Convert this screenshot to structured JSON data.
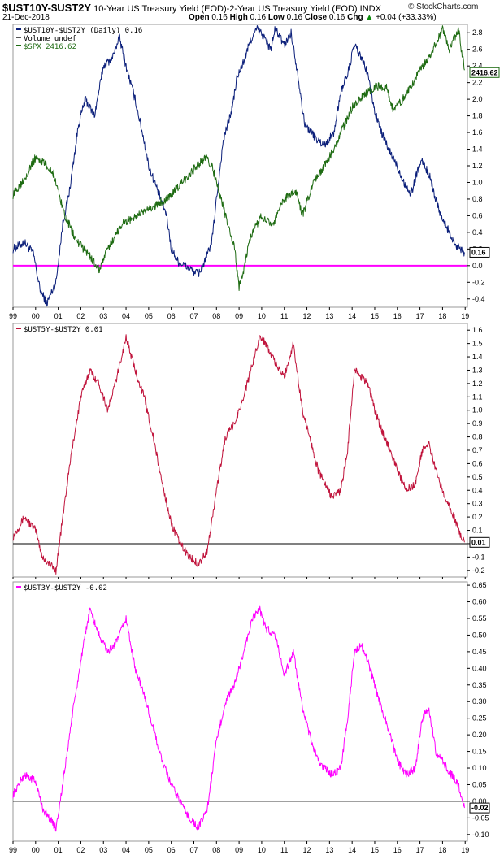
{
  "header": {
    "symbol": "$UST10Y-$UST2Y",
    "description": "10-Year US Treasury Yield (EOD)-2-Year US Treasury Yield (EOD)",
    "exchange": "INDX",
    "date": "21-Dec-2018",
    "open_label": "Open",
    "open": "0.16",
    "high_label": "High",
    "high": "0.16",
    "low_label": "Low",
    "low": "0.16",
    "close_label": "Close",
    "close": "0.16",
    "chg_label": "Chg",
    "chg": "+0.04 (+33.33%)",
    "chg_icon": "up-triangle-icon",
    "brand": "© StockCharts.com"
  },
  "chart_data": [
    {
      "type": "line",
      "panel": "main",
      "legend": [
        "$UST10Y-$UST2Y (Daily) 0.16",
        "Volume undef",
        "$SPX 2416.62"
      ],
      "x_tick_labels": [
        "99",
        "00",
        "01",
        "02",
        "03",
        "04",
        "05",
        "06",
        "07",
        "08",
        "09",
        "10",
        "11",
        "12",
        "13",
        "14",
        "15",
        "16",
        "17",
        "18",
        "19"
      ],
      "y_tick_labels": [
        "2.8",
        "2.6",
        "2.4",
        "2.2",
        "2.0",
        "1.8",
        "1.6",
        "1.4",
        "1.2",
        "1.0",
        "0.8",
        "0.6",
        "0.4",
        "0.2",
        "0.0",
        "-0.2",
        "-0.4"
      ],
      "ylim": [
        -0.5,
        2.9
      ],
      "last_value_label": "0.16",
      "overlay_last_label": "2416.62",
      "reference_line": 0,
      "colors": {
        "series": "#0b1f7a",
        "overlay": "#1e6b12",
        "reference": "#ff00ff"
      },
      "series": [
        {
          "name": "$UST10Y-$UST2Y",
          "x": [
            1999.0,
            1999.5,
            1999.9,
            2000.2,
            2000.5,
            2000.9,
            2001.2,
            2001.5,
            2001.9,
            2002.2,
            2002.6,
            2003.0,
            2003.4,
            2003.7,
            2004.0,
            2004.4,
            2004.8,
            2005.0,
            2005.4,
            2005.8,
            2006.0,
            2006.3,
            2006.6,
            2006.9,
            2007.2,
            2007.5,
            2007.8,
            2008.0,
            2008.3,
            2008.7,
            2008.9,
            2009.2,
            2009.5,
            2009.8,
            2010.1,
            2010.4,
            2010.6,
            2011.0,
            2011.3,
            2011.6,
            2011.9,
            2012.2,
            2012.5,
            2012.8,
            2013.2,
            2013.5,
            2013.8,
            2014.1,
            2014.4,
            2014.7,
            2015.0,
            2015.3,
            2015.6,
            2015.9,
            2016.3,
            2016.6,
            2016.9,
            2017.1,
            2017.4,
            2017.7,
            2018.0,
            2018.3,
            2018.6,
            2018.97
          ],
          "values": [
            0.2,
            0.28,
            0.15,
            -0.3,
            -0.45,
            -0.2,
            0.5,
            0.9,
            1.7,
            2.0,
            1.8,
            2.4,
            2.5,
            2.75,
            2.4,
            2.0,
            1.5,
            1.2,
            0.9,
            0.6,
            0.2,
            0.05,
            0.0,
            -0.05,
            -0.1,
            0.05,
            0.3,
            0.8,
            1.5,
            1.9,
            2.25,
            2.45,
            2.7,
            2.85,
            2.75,
            2.6,
            2.85,
            2.65,
            2.8,
            2.3,
            1.7,
            1.6,
            1.5,
            1.45,
            1.6,
            2.1,
            2.3,
            2.65,
            2.5,
            2.3,
            1.85,
            1.6,
            1.4,
            1.25,
            1.0,
            0.85,
            1.15,
            1.25,
            1.1,
            0.8,
            0.55,
            0.4,
            0.25,
            0.16
          ]
        },
        {
          "name": "$SPX",
          "x": [
            1999.0,
            1999.5,
            2000.0,
            2000.3,
            2000.8,
            2001.3,
            2001.8,
            2002.3,
            2002.8,
            2003.2,
            2003.8,
            2004.5,
            2005.2,
            2006.0,
            2006.8,
            2007.5,
            2007.8,
            2008.3,
            2008.8,
            2009.0,
            2009.2,
            2009.5,
            2010.0,
            2010.5,
            2011.0,
            2011.5,
            2011.8,
            2012.3,
            2013.0,
            2013.5,
            2014.0,
            2014.5,
            2015.0,
            2015.5,
            2015.8,
            2016.1,
            2016.5,
            2017.0,
            2017.5,
            2018.0,
            2018.3,
            2018.7,
            2018.97
          ],
          "values": [
            0.85,
            1.05,
            1.3,
            1.25,
            1.1,
            0.6,
            0.3,
            0.15,
            -0.05,
            0.2,
            0.5,
            0.6,
            0.7,
            0.85,
            1.1,
            1.3,
            1.2,
            0.7,
            0.2,
            -0.25,
            -0.05,
            0.35,
            0.6,
            0.5,
            0.8,
            0.9,
            0.6,
            1.0,
            1.3,
            1.6,
            1.9,
            2.05,
            2.15,
            2.15,
            1.9,
            1.95,
            2.1,
            2.35,
            2.55,
            2.85,
            2.6,
            2.85,
            2.35
          ]
        }
      ]
    },
    {
      "type": "line",
      "panel": "middle",
      "legend": "$UST5Y-$UST2Y 0.01",
      "x_tick_labels": [],
      "y_tick_labels": [
        "1.6",
        "1.5",
        "1.4",
        "1.3",
        "1.2",
        "1.1",
        "1.0",
        "0.9",
        "0.8",
        "0.7",
        "0.6",
        "0.5",
        "0.4",
        "0.3",
        "0.2",
        "0.1",
        "0.0",
        "-0.1",
        "-0.2"
      ],
      "ylim": [
        -0.25,
        1.65
      ],
      "last_value_label": "0.01",
      "reference_line": 0,
      "colors": {
        "series": "#c0143c",
        "reference": "#000000"
      },
      "series": [
        {
          "name": "$UST5Y-$UST2Y",
          "x": [
            1999.0,
            1999.5,
            2000.0,
            2000.3,
            2000.6,
            2000.9,
            2001.2,
            2001.6,
            2002.0,
            2002.4,
            2002.8,
            2003.2,
            2003.6,
            2004.0,
            2004.4,
            2004.8,
            2005.2,
            2005.6,
            2006.0,
            2006.4,
            2006.8,
            2007.2,
            2007.6,
            2008.0,
            2008.4,
            2008.8,
            2009.2,
            2009.6,
            2009.9,
            2010.2,
            2010.6,
            2011.0,
            2011.4,
            2011.8,
            2012.2,
            2012.5,
            2012.8,
            2013.1,
            2013.5,
            2013.8,
            2014.1,
            2014.4,
            2014.7,
            2015.0,
            2015.3,
            2015.7,
            2016.0,
            2016.4,
            2016.8,
            2017.1,
            2017.4,
            2017.7,
            2018.0,
            2018.4,
            2018.7,
            2018.97
          ],
          "values": [
            0.05,
            0.2,
            0.1,
            -0.1,
            -0.15,
            -0.2,
            0.2,
            0.7,
            1.1,
            1.3,
            1.2,
            1.0,
            1.25,
            1.55,
            1.3,
            1.1,
            0.8,
            0.45,
            0.15,
            0.0,
            -0.1,
            -0.15,
            -0.05,
            0.4,
            0.8,
            0.9,
            1.1,
            1.35,
            1.55,
            1.5,
            1.35,
            1.25,
            1.5,
            1.0,
            0.75,
            0.55,
            0.45,
            0.35,
            0.4,
            0.7,
            1.3,
            1.25,
            1.2,
            1.0,
            0.85,
            0.7,
            0.55,
            0.4,
            0.45,
            0.7,
            0.75,
            0.55,
            0.4,
            0.25,
            0.1,
            0.01
          ]
        }
      ]
    },
    {
      "type": "line",
      "panel": "bottom",
      "legend": "$UST3Y-$UST2Y -0.02",
      "x_tick_labels": [
        "99",
        "00",
        "01",
        "02",
        "03",
        "04",
        "05",
        "06",
        "07",
        "08",
        "09",
        "10",
        "11",
        "12",
        "13",
        "14",
        "15",
        "16",
        "17",
        "18",
        "19"
      ],
      "y_tick_labels": [
        "0.65",
        "0.60",
        "0.55",
        "0.50",
        "0.45",
        "0.40",
        "0.35",
        "0.30",
        "0.25",
        "0.20",
        "0.15",
        "0.10",
        "0.05",
        "0.00",
        "-0.05",
        "-0.10"
      ],
      "ylim": [
        -0.12,
        0.66
      ],
      "last_value_label": "-0.02",
      "reference_line": 0,
      "colors": {
        "series": "#ff00ff",
        "reference": "#000000"
      },
      "series": [
        {
          "name": "$UST3Y-$UST2Y",
          "x": [
            1999.0,
            1999.5,
            2000.0,
            2000.3,
            2000.6,
            2000.9,
            2001.2,
            2001.6,
            2002.0,
            2002.4,
            2002.8,
            2003.2,
            2003.6,
            2004.0,
            2004.4,
            2004.8,
            2005.2,
            2005.6,
            2006.0,
            2006.4,
            2006.8,
            2007.2,
            2007.6,
            2008.0,
            2008.4,
            2008.8,
            2009.2,
            2009.6,
            2009.9,
            2010.2,
            2010.6,
            2011.0,
            2011.4,
            2011.8,
            2012.2,
            2012.5,
            2012.8,
            2013.1,
            2013.5,
            2013.8,
            2014.1,
            2014.4,
            2014.7,
            2015.0,
            2015.3,
            2015.7,
            2016.0,
            2016.4,
            2016.8,
            2017.1,
            2017.4,
            2017.7,
            2018.0,
            2018.4,
            2018.7,
            2018.97
          ],
          "values": [
            0.02,
            0.08,
            0.06,
            -0.02,
            -0.05,
            -0.08,
            0.05,
            0.25,
            0.42,
            0.58,
            0.5,
            0.45,
            0.48,
            0.55,
            0.4,
            0.32,
            0.22,
            0.12,
            0.05,
            0.0,
            -0.05,
            -0.08,
            -0.02,
            0.18,
            0.3,
            0.35,
            0.45,
            0.55,
            0.58,
            0.52,
            0.5,
            0.38,
            0.45,
            0.28,
            0.18,
            0.12,
            0.1,
            0.08,
            0.1,
            0.25,
            0.45,
            0.47,
            0.42,
            0.35,
            0.28,
            0.2,
            0.12,
            0.08,
            0.1,
            0.25,
            0.28,
            0.15,
            0.12,
            0.08,
            0.05,
            -0.02
          ]
        }
      ]
    }
  ]
}
